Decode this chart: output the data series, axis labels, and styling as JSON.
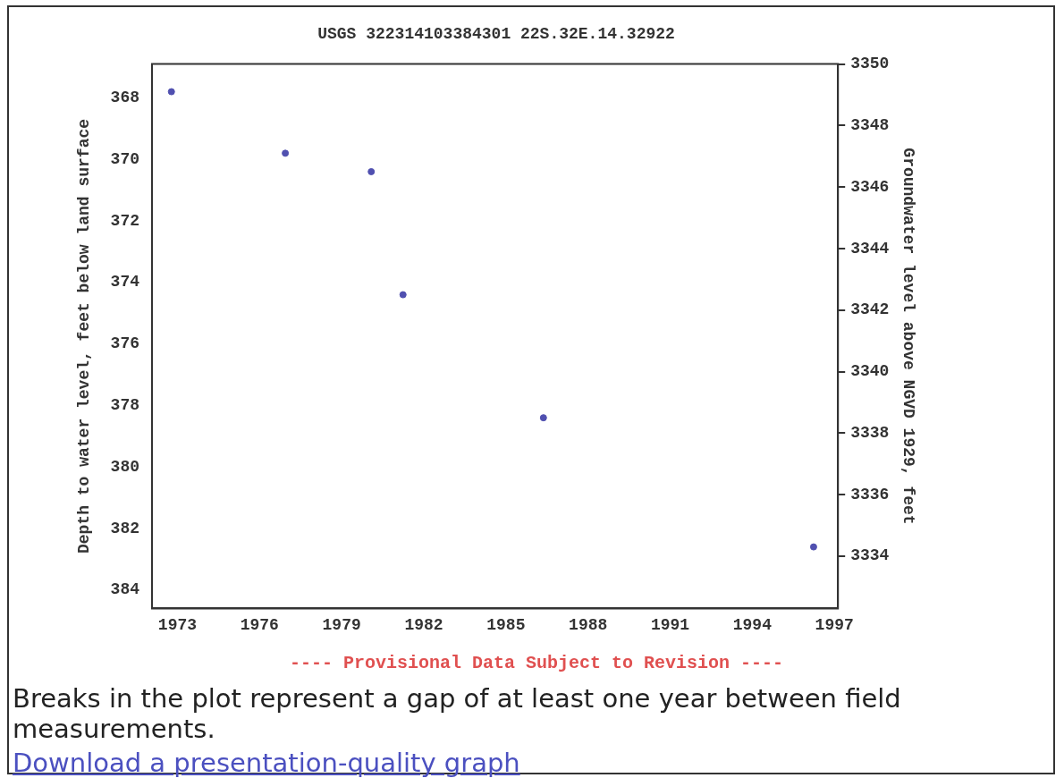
{
  "chart_data": {
    "type": "scatter",
    "title": "USGS 322314103384301 22S.32E.14.32922",
    "ylabel": "Depth to water level, feet below land surface",
    "y2label": "Groundwater level above NGVD 1929, feet",
    "x": [
      1972.78,
      1976.94,
      1980.08,
      1981.24,
      1986.37,
      1996.24
    ],
    "series": [
      {
        "color": "#5050b0",
        "values": [
          367.8,
          369.8,
          370.4,
          374.4,
          378.4,
          382.6
        ]
      }
    ],
    "xlim": [
      1972.07,
      1997.13
    ],
    "xticks": [
      1973,
      1976,
      1979,
      1982,
      1985,
      1988,
      1991,
      1994,
      1997
    ],
    "ylim": [
      384.6,
      366.9
    ],
    "yticks": [
      368,
      370,
      372,
      374,
      376,
      378,
      380,
      382,
      384
    ],
    "y2lim": [
      3332.3,
      3350
    ],
    "y2ticks": [
      3334,
      3336,
      3338,
      3340,
      3342,
      3344,
      3346,
      3348,
      3350
    ],
    "marker": "circle",
    "grid": false,
    "legend": false,
    "annotations": [
      "---- Provisional Data Subject to Revision ----",
      "Breaks in the plot represent a gap of at least one year between field measurements.",
      "Download a presentation-quality graph"
    ]
  }
}
